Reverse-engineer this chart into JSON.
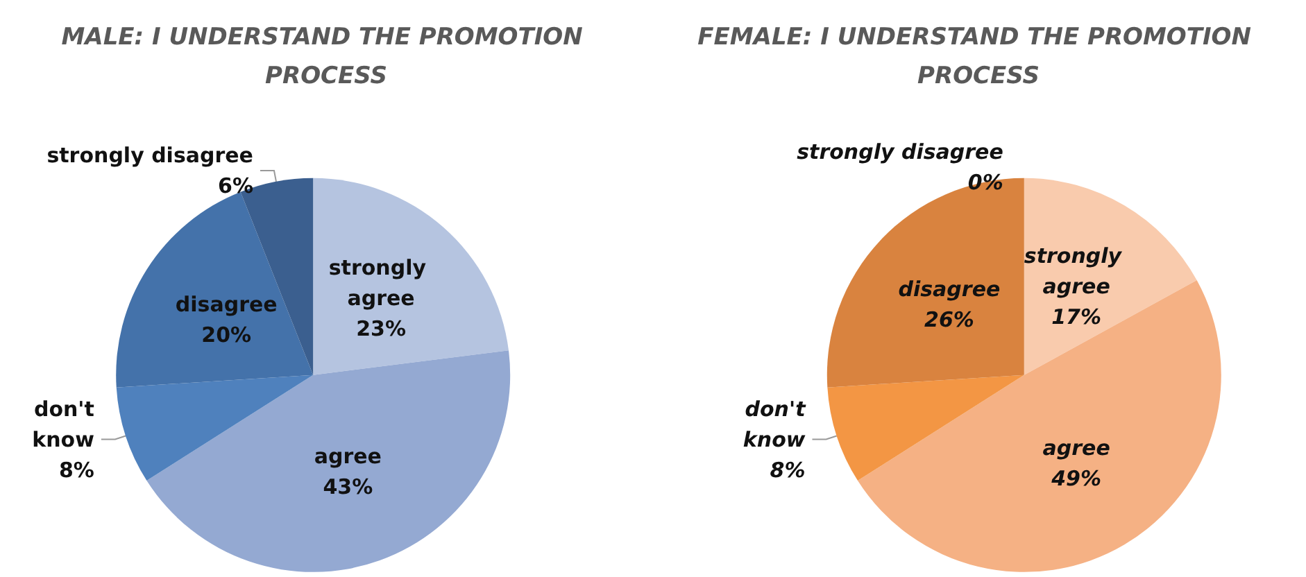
{
  "chart_data": [
    {
      "type": "pie",
      "title": "MALE: I UNDERSTAND THE PROMOTION PROCESS",
      "categories": [
        "strongly agree",
        "agree",
        "don't know",
        "disagree",
        "strongly disagree"
      ],
      "values": [
        23,
        43,
        8,
        20,
        6
      ],
      "value_labels": [
        "23%",
        "43%",
        "8%",
        "20%",
        "6%"
      ],
      "colors": [
        "#b5c4e0",
        "#94a9d2",
        "#4f81bd",
        "#4472aa",
        "#3b5f8f"
      ],
      "legend": false
    },
    {
      "type": "pie",
      "title": "FEMALE: I UNDERSTAND THE PROMOTION PROCESS",
      "categories": [
        "strongly agree",
        "agree",
        "don't know",
        "disagree",
        "strongly disagree"
      ],
      "values": [
        17,
        49,
        8,
        26,
        0
      ],
      "value_labels": [
        "17%",
        "49%",
        "8%",
        "26%",
        "0%"
      ],
      "colors": [
        "#f9cbad",
        "#f5b184",
        "#f39644",
        "#d9833f",
        "#c26f35"
      ],
      "legend": false
    }
  ]
}
